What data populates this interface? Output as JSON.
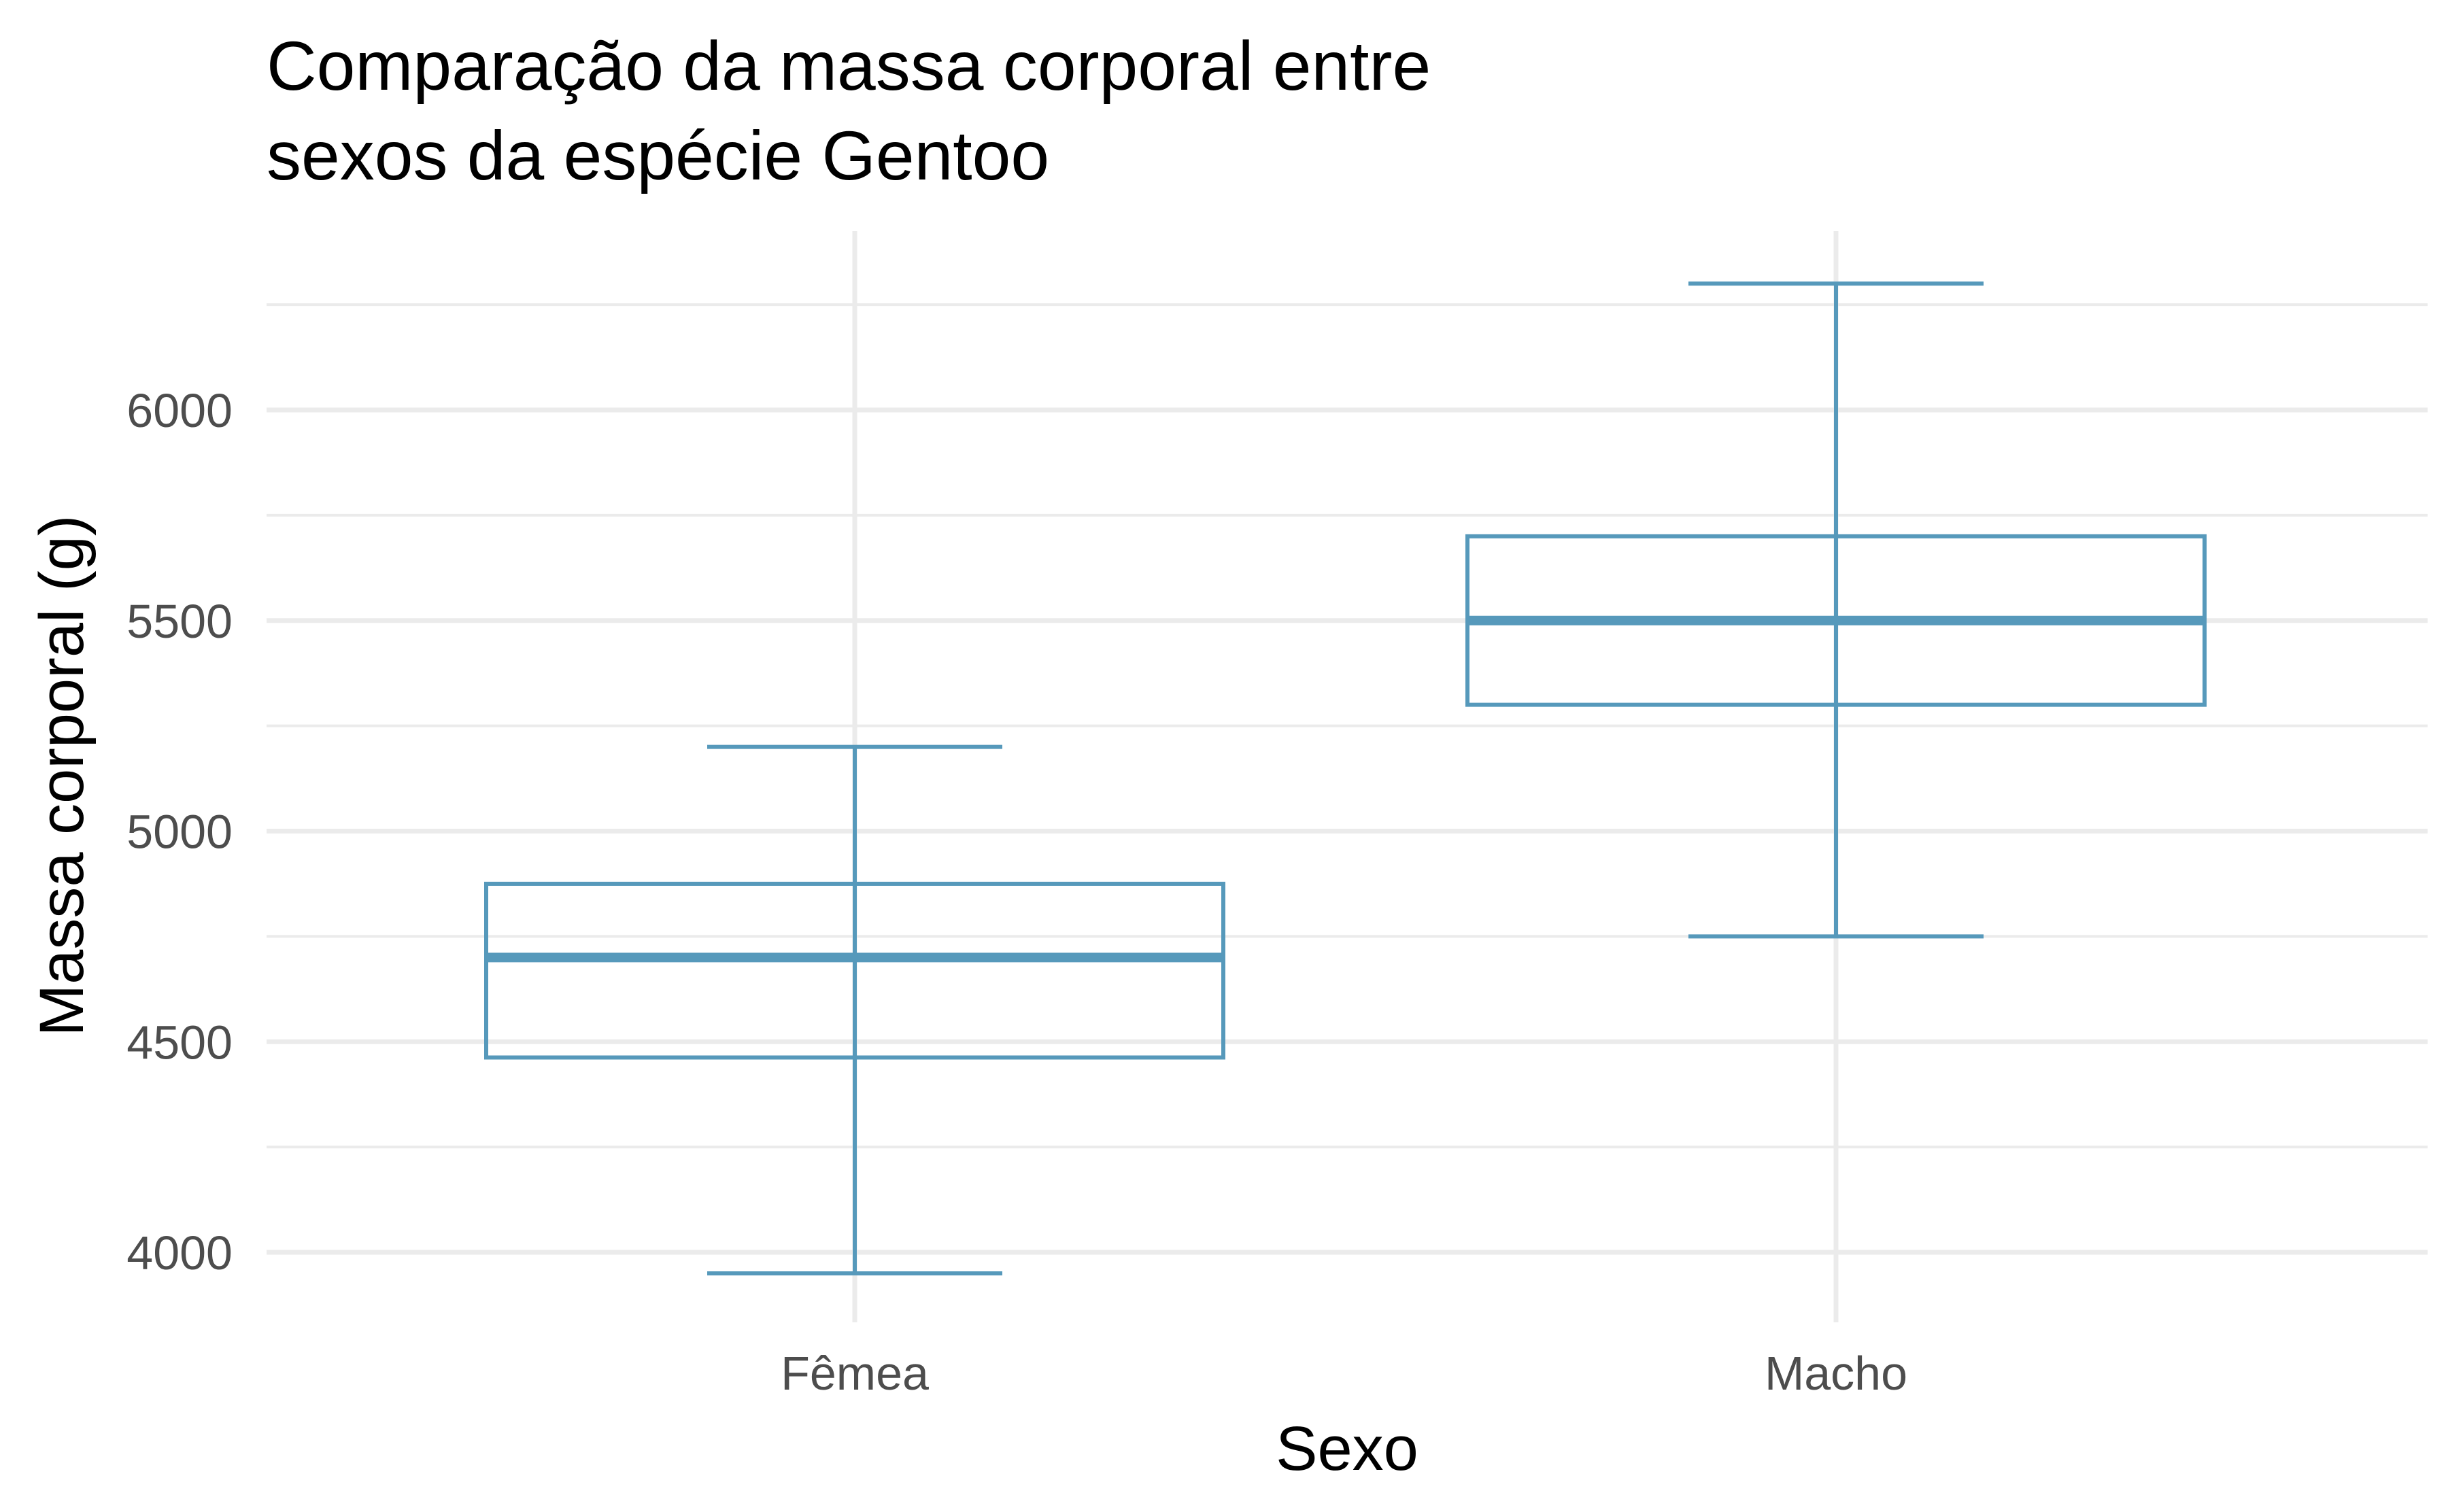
{
  "chart_data": {
    "type": "box",
    "title_lines": [
      "Comparação da massa corporal entre",
      "sexos da espécie Gentoo"
    ],
    "xlabel": "Sexo",
    "ylabel": "Massa corporal (g)",
    "categories": [
      "Fêmea",
      "Macho"
    ],
    "boxes": [
      {
        "category": "Fêmea",
        "min": 3950,
        "q1": 4462.5,
        "median": 4700,
        "q3": 4875,
        "max": 5200
      },
      {
        "category": "Macho",
        "min": 4750,
        "q1": 5300,
        "median": 5500,
        "q3": 5700,
        "max": 6300
      }
    ],
    "yticks": [
      4000,
      4500,
      5000,
      5500,
      6000
    ],
    "ylim": [
      3850,
      6400
    ],
    "grid": true,
    "legend": "none",
    "colors": {
      "box": "#5699bb",
      "grid": "#ebebeb",
      "tick_text": "#4d4d4d"
    }
  }
}
